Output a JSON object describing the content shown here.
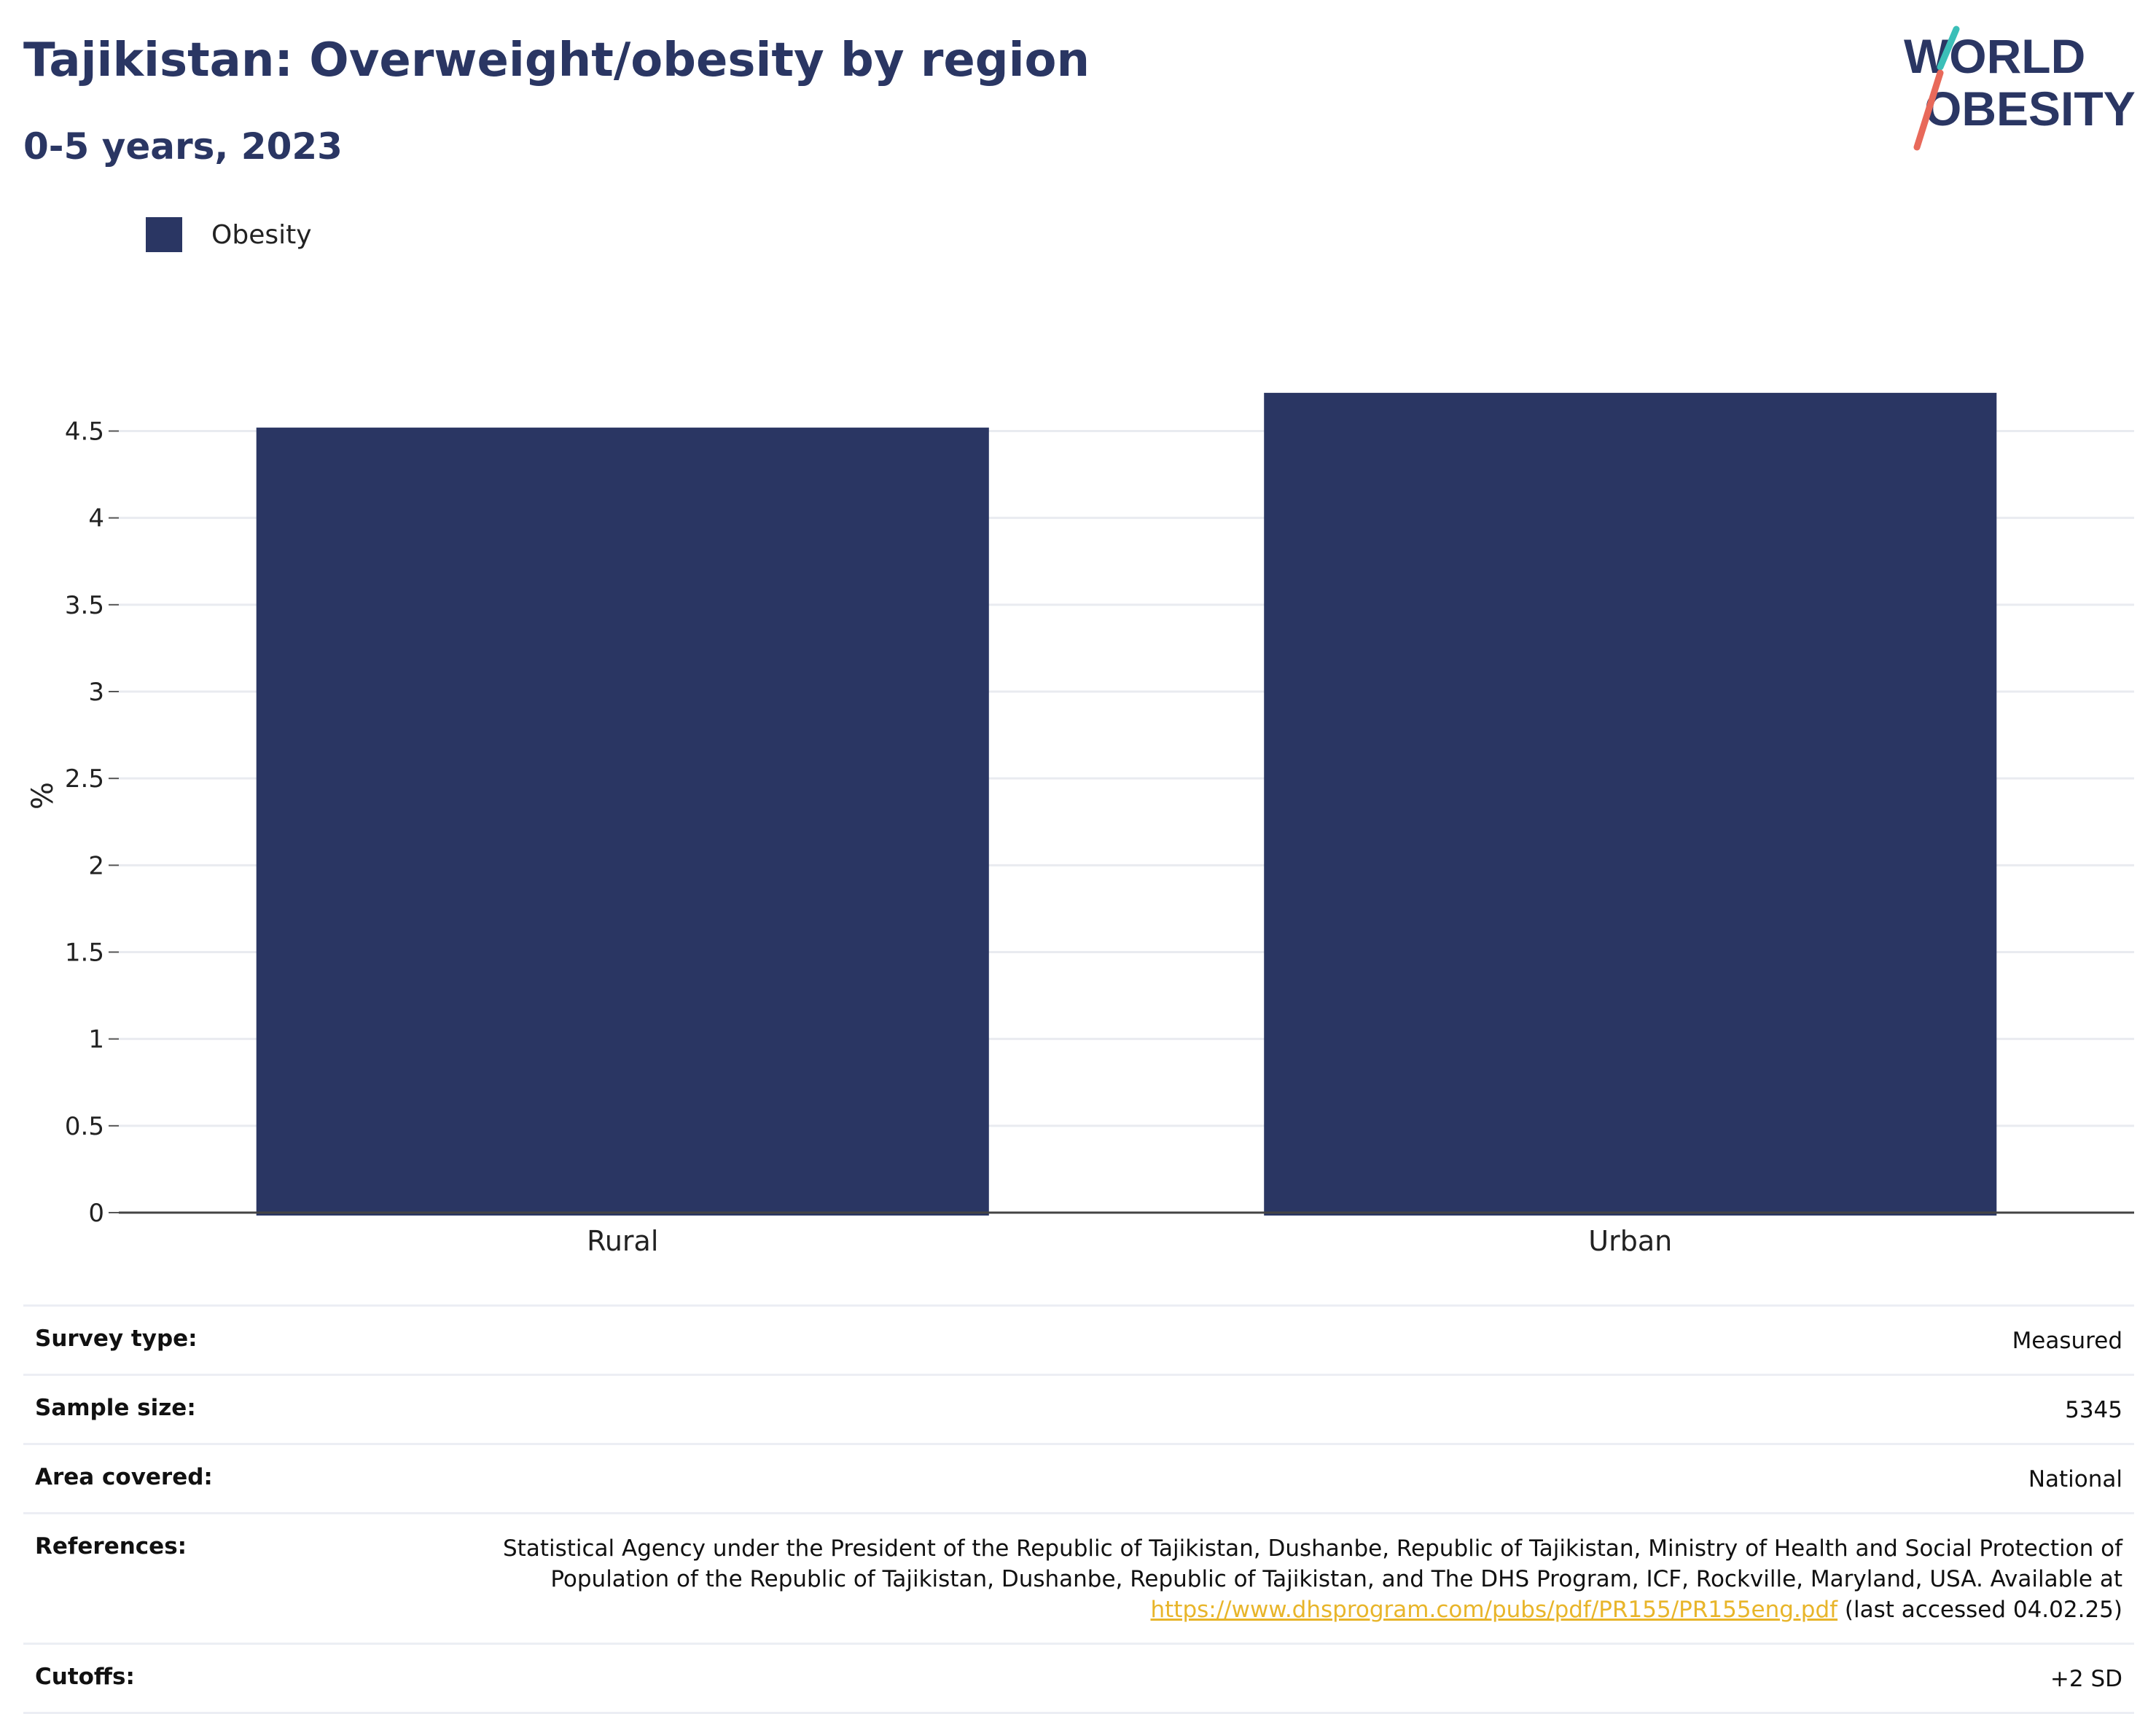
{
  "header": {
    "title": "Tajikistan: Overweight/obesity by region",
    "subtitle": "0-5 years, 2023"
  },
  "logo": {
    "line1": "WORLD",
    "line2": "OBESITY",
    "colors": {
      "text": "#2a3663",
      "slash_top": "#3bbfb8",
      "slash_bottom": "#e8695a"
    }
  },
  "legend": {
    "items": [
      {
        "label": "Obesity",
        "color": "#2a3663"
      }
    ]
  },
  "chart_data": {
    "type": "bar",
    "categories": [
      "Rural",
      "Urban"
    ],
    "series": [
      {
        "name": "Obesity",
        "values": [
          4.52,
          4.72
        ],
        "color": "#2a3663"
      }
    ],
    "ylabel": "%",
    "xlabel": "",
    "ylim": [
      0,
      4.8
    ],
    "yticks": [
      0,
      0.5,
      1,
      1.5,
      2,
      2.5,
      3,
      3.5,
      4,
      4.5
    ],
    "ytick_labels": [
      "0",
      "0.5",
      "1",
      "1.5",
      "2",
      "2.5",
      "3",
      "3.5",
      "4",
      "4.5"
    ],
    "grid": true,
    "legend_position": "top-left"
  },
  "info": {
    "survey_type": {
      "label": "Survey type:",
      "value": "Measured"
    },
    "sample_size": {
      "label": "Sample size:",
      "value": "5345"
    },
    "area_covered": {
      "label": "Area covered:",
      "value": "National"
    },
    "references": {
      "label": "References:",
      "text_before": "Statistical Agency under the President of the Republic of Tajikistan, Dushanbe, Republic of Tajikistan, Ministry of Health and Social Protection of Population of the Republic of Tajikistan, Dushanbe, Republic of Tajikistan, and The DHS Program, ICF, Rockville, Maryland, USA. Available at ",
      "link": "https://www.dhsprogram.com/pubs/pdf/PR155/PR155eng.pdf",
      "text_after": " (last accessed 04.02.25)"
    },
    "cutoffs": {
      "label": "Cutoffs:",
      "value": "+2 SD"
    }
  }
}
